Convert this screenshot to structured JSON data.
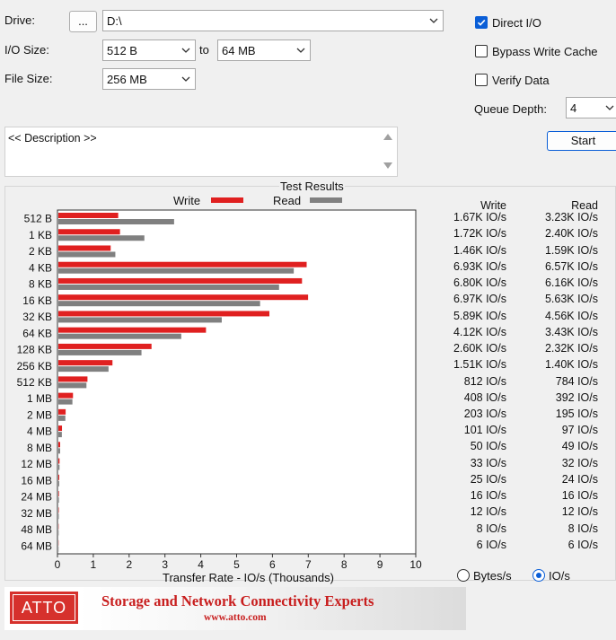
{
  "drive": {
    "label": "Drive:",
    "browse_label": "...",
    "value": "D:\\"
  },
  "io_size": {
    "label": "I/O Size:",
    "from": "512 B",
    "to_label": "to",
    "to": "64 MB"
  },
  "file_size": {
    "label": "File Size:",
    "value": "256 MB"
  },
  "options": {
    "direct_io": {
      "label": "Direct I/O",
      "checked": true
    },
    "bypass_write_cache": {
      "label": "Bypass Write Cache",
      "checked": false
    },
    "verify_data": {
      "label": "Verify Data",
      "checked": false
    },
    "queue_depth": {
      "label": "Queue Depth:",
      "value": "4"
    }
  },
  "description": {
    "text": "<< Description >>"
  },
  "start_label": "Start",
  "results": {
    "title": "Test Results",
    "write_label": "Write",
    "read_label": "Read",
    "write_header": "Write",
    "read_header": "Read",
    "write_color": "#e02020",
    "read_color": "#808080"
  },
  "chart_data": {
    "type": "bar",
    "orientation": "horizontal",
    "title": "Test Results",
    "xlabel": "Transfer Rate - IO/s (Thousands)",
    "xlim": [
      0,
      10
    ],
    "xticks": [
      "0",
      "1",
      "2",
      "3",
      "4",
      "5",
      "6",
      "7",
      "8",
      "9",
      "10"
    ],
    "categories": [
      "512 B",
      "1 KB",
      "2 KB",
      "4 KB",
      "8 KB",
      "16 KB",
      "32 KB",
      "64 KB",
      "128 KB",
      "256 KB",
      "512 KB",
      "1 MB",
      "2 MB",
      "4 MB",
      "8 MB",
      "12 MB",
      "16 MB",
      "24 MB",
      "32 MB",
      "48 MB",
      "64 MB"
    ],
    "series": [
      {
        "name": "Write",
        "values": [
          1.67,
          1.72,
          1.46,
          6.93,
          6.8,
          6.97,
          5.89,
          4.12,
          2.6,
          1.51,
          0.812,
          0.408,
          0.203,
          0.101,
          0.05,
          0.033,
          0.025,
          0.016,
          0.012,
          0.008,
          0.006
        ]
      },
      {
        "name": "Read",
        "values": [
          3.23,
          2.4,
          1.59,
          6.57,
          6.16,
          5.63,
          4.56,
          3.43,
          2.32,
          1.4,
          0.784,
          0.392,
          0.195,
          0.097,
          0.049,
          0.032,
          0.024,
          0.016,
          0.012,
          0.008,
          0.006
        ]
      }
    ],
    "legend": "top-center"
  },
  "table": {
    "write": [
      "1.67K IO/s",
      "1.72K IO/s",
      "1.46K IO/s",
      "6.93K IO/s",
      "6.80K IO/s",
      "6.97K IO/s",
      "5.89K IO/s",
      "4.12K IO/s",
      "2.60K IO/s",
      "1.51K IO/s",
      "812 IO/s",
      "408 IO/s",
      "203 IO/s",
      "101 IO/s",
      "50 IO/s",
      "33 IO/s",
      "25 IO/s",
      "16 IO/s",
      "12 IO/s",
      "8 IO/s",
      "6 IO/s"
    ],
    "read": [
      "3.23K IO/s",
      "2.40K IO/s",
      "1.59K IO/s",
      "6.57K IO/s",
      "6.16K IO/s",
      "5.63K IO/s",
      "4.56K IO/s",
      "3.43K IO/s",
      "2.32K IO/s",
      "1.40K IO/s",
      "784 IO/s",
      "392 IO/s",
      "195 IO/s",
      "97 IO/s",
      "49 IO/s",
      "32 IO/s",
      "24 IO/s",
      "16 IO/s",
      "12 IO/s",
      "8 IO/s",
      "6 IO/s"
    ]
  },
  "units": {
    "bytes_label": "Bytes/s",
    "ios_label": "IO/s",
    "selected": "IO/s"
  },
  "banner": {
    "logo": "ATTO",
    "tagline": "Storage and Network Connectivity Experts",
    "url": "www.atto.com"
  }
}
